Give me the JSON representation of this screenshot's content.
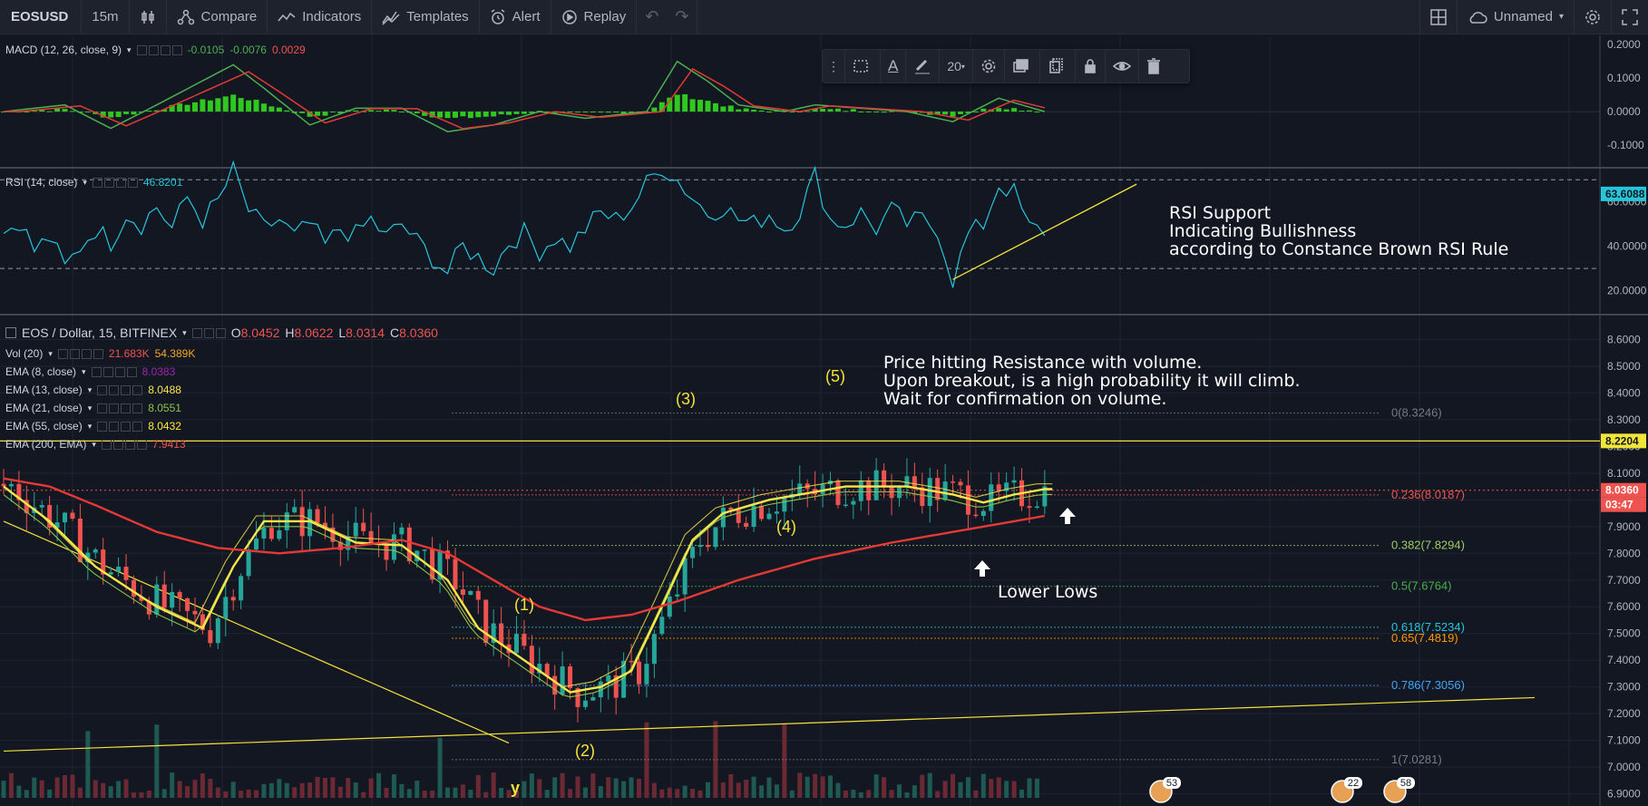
{
  "toolbar": {
    "symbol": "EOSUSD",
    "interval": "15m",
    "compare": "Compare",
    "indicators": "Indicators",
    "templates": "Templates",
    "alert": "Alert",
    "replay": "Replay",
    "layout_name": "Unnamed"
  },
  "float_toolbar": {
    "font_size": "20"
  },
  "macd": {
    "label": "MACD (12, 26, close, 9)",
    "v1": "-0.0105",
    "v2": "-0.0076",
    "v3": "0.0029",
    "ticks": [
      "0.2000",
      "0.1000",
      "0.0000",
      "-0.1000"
    ],
    "tick_values": [
      0.2,
      0.1,
      0.0,
      -0.1
    ]
  },
  "rsi": {
    "label": "RSI (14, close)",
    "value": "46.8201",
    "ticks": [
      "60.0000",
      "40.0000",
      "20.0000"
    ],
    "tick_values": [
      60,
      40,
      20
    ],
    "upper_band": 70,
    "lower_band": 30,
    "badge": "63.6088",
    "annotation": [
      "RSI Support",
      "Indicating Bullishness",
      "according to Constance Brown RSI Rule"
    ]
  },
  "price": {
    "title": "EOS / Dollar, 15, BITFINEX",
    "o": "8.0452",
    "h": "8.0622",
    "l": "8.0314",
    "c": "8.0360",
    "studies": [
      {
        "label": "Vol (20)",
        "values": [
          "21.683K",
          "54.389K"
        ],
        "colors": [
          "#ef5350",
          "#f5a623"
        ]
      },
      {
        "label": "EMA (8, close)",
        "values": [
          "8.0383"
        ],
        "colors": [
          "#9c27b0"
        ]
      },
      {
        "label": "EMA (13, close)",
        "values": [
          "8.0488"
        ],
        "colors": [
          "#f6e84c"
        ]
      },
      {
        "label": "EMA (21, close)",
        "values": [
          "8.0551"
        ],
        "colors": [
          "#8bc34a"
        ]
      },
      {
        "label": "EMA (55, close)",
        "values": [
          "8.0432"
        ],
        "colors": [
          "#ffeb3b"
        ]
      },
      {
        "label": "EMA (200, EMA)",
        "values": [
          "7.9413"
        ],
        "colors": [
          "#ef5350"
        ]
      }
    ],
    "axis_ticks": [
      "8.6000",
      "8.5000",
      "8.4000",
      "8.3000",
      "8.2000",
      "8.1000",
      "8.0000",
      "7.9000",
      "7.8000",
      "7.7000",
      "7.6000",
      "7.5000",
      "7.4000",
      "7.3000",
      "7.2000",
      "7.1000",
      "7.0000",
      "6.9000"
    ],
    "axis_values": [
      8.6,
      8.5,
      8.4,
      8.3,
      8.2,
      8.1,
      8.0,
      7.9,
      7.8,
      7.7,
      7.6,
      7.5,
      7.4,
      7.3,
      7.2,
      7.1,
      7.0,
      6.9
    ],
    "badge_resistance": "8.2204",
    "badge_last": "8.0360",
    "badge_timer": "03:47",
    "resistance": 8.2204,
    "fib": [
      {
        "label": "0(8.3246)",
        "value": 8.3246,
        "color": "#787b86"
      },
      {
        "label": "0.236(8.0187)",
        "value": 8.0187,
        "color": "#ef5350"
      },
      {
        "label": "0.382(7.8294)",
        "value": 7.8294,
        "color": "#9ccc65"
      },
      {
        "label": "0.5(7.6764)",
        "value": 7.6764,
        "color": "#4caf50"
      },
      {
        "label": "0.618(7.5234)",
        "value": 7.5234,
        "color": "#26c6da"
      },
      {
        "label": "0.65(7.4819)",
        "value": 7.4819,
        "color": "#ff9800"
      },
      {
        "label": "0.786(7.3056)",
        "value": 7.3056,
        "color": "#42a5f5"
      },
      {
        "label": "1(7.0281)",
        "value": 7.0281,
        "color": "#787b86"
      }
    ],
    "waves": [
      "(1)",
      "(2)",
      "(3)",
      "(4)",
      "(5)",
      "y"
    ],
    "annotations": {
      "resistance": [
        "Price hitting Resistance with volume.",
        "Upon breakout, is a high probability it will climb.",
        "Wait for confirmation on volume."
      ],
      "lower_lows": "Lower Lows"
    },
    "event_badges": [
      "53",
      "22",
      "58"
    ]
  },
  "colors": {
    "bg": "#131722",
    "grid": "#1e2433",
    "up": "#26a69a",
    "down": "#ef5350",
    "ema200": "#e53935",
    "ema55": "#f7e64a",
    "rsi": "#26c6da",
    "macd": "#4caf50",
    "signal": "#e53935",
    "hist": "#2ec81e",
    "annot": "#f5e23a"
  },
  "chart_data": {
    "type": "candlestick",
    "title": "EOS / Dollar, 15, BITFINEX",
    "price_range": [
      6.9,
      8.6
    ],
    "ema200_path": [
      [
        0,
        8.08
      ],
      [
        6,
        8.05
      ],
      [
        12,
        7.98
      ],
      [
        20,
        7.88
      ],
      [
        28,
        7.82
      ],
      [
        36,
        7.8
      ],
      [
        44,
        7.82
      ],
      [
        52,
        7.85
      ],
      [
        58,
        7.8
      ],
      [
        64,
        7.7
      ],
      [
        70,
        7.6
      ],
      [
        76,
        7.55
      ],
      [
        82,
        7.57
      ],
      [
        88,
        7.62
      ],
      [
        96,
        7.7
      ],
      [
        106,
        7.78
      ],
      [
        116,
        7.84
      ],
      [
        124,
        7.88
      ],
      [
        130,
        7.91
      ],
      [
        136,
        7.94
      ]
    ],
    "ema55_path": [
      [
        0,
        8.05
      ],
      [
        6,
        7.92
      ],
      [
        12,
        7.75
      ],
      [
        20,
        7.6
      ],
      [
        26,
        7.52
      ],
      [
        30,
        7.75
      ],
      [
        34,
        7.92
      ],
      [
        40,
        7.92
      ],
      [
        46,
        7.84
      ],
      [
        52,
        7.83
      ],
      [
        58,
        7.7
      ],
      [
        62,
        7.52
      ],
      [
        68,
        7.4
      ],
      [
        74,
        7.28
      ],
      [
        78,
        7.3
      ],
      [
        82,
        7.36
      ],
      [
        86,
        7.6
      ],
      [
        90,
        7.85
      ],
      [
        94,
        7.95
      ],
      [
        100,
        8.0
      ],
      [
        110,
        8.05
      ],
      [
        118,
        8.05
      ],
      [
        124,
        8.02
      ],
      [
        128,
        7.99
      ],
      [
        132,
        8.02
      ],
      [
        136,
        8.04
      ]
    ],
    "rsi_path": [
      [
        0,
        46
      ],
      [
        2,
        52
      ],
      [
        4,
        38
      ],
      [
        6,
        44
      ],
      [
        8,
        30
      ],
      [
        10,
        40
      ],
      [
        12,
        48
      ],
      [
        14,
        42
      ],
      [
        16,
        55
      ],
      [
        18,
        50
      ],
      [
        20,
        58
      ],
      [
        22,
        48
      ],
      [
        24,
        62
      ],
      [
        26,
        52
      ],
      [
        28,
        60
      ],
      [
        30,
        74
      ],
      [
        32,
        56
      ],
      [
        34,
        48
      ],
      [
        36,
        52
      ],
      [
        38,
        44
      ],
      [
        40,
        50
      ],
      [
        42,
        40
      ],
      [
        44,
        48
      ],
      [
        46,
        45
      ],
      [
        48,
        52
      ],
      [
        50,
        44
      ],
      [
        52,
        50
      ],
      [
        54,
        42
      ],
      [
        56,
        35
      ],
      [
        58,
        28
      ],
      [
        60,
        40
      ],
      [
        62,
        35
      ],
      [
        64,
        30
      ],
      [
        66,
        42
      ],
      [
        68,
        46
      ],
      [
        70,
        38
      ],
      [
        72,
        44
      ],
      [
        74,
        40
      ],
      [
        76,
        48
      ],
      [
        78,
        55
      ],
      [
        80,
        52
      ],
      [
        82,
        58
      ],
      [
        84,
        68
      ],
      [
        86,
        76
      ],
      [
        88,
        70
      ],
      [
        90,
        62
      ],
      [
        92,
        55
      ],
      [
        94,
        58
      ],
      [
        96,
        52
      ],
      [
        98,
        50
      ],
      [
        100,
        55
      ],
      [
        102,
        48
      ],
      [
        104,
        56
      ],
      [
        106,
        72
      ],
      [
        108,
        52
      ],
      [
        110,
        50
      ],
      [
        112,
        55
      ],
      [
        114,
        48
      ],
      [
        116,
        56
      ],
      [
        118,
        50
      ],
      [
        120,
        52
      ],
      [
        122,
        48
      ],
      [
        124,
        25
      ],
      [
        126,
        45
      ],
      [
        128,
        50
      ],
      [
        130,
        68
      ],
      [
        132,
        64
      ],
      [
        134,
        48
      ],
      [
        136,
        47
      ]
    ],
    "macd_path": [
      [
        0,
        0.0
      ],
      [
        8,
        0.02
      ],
      [
        14,
        -0.05
      ],
      [
        20,
        0.02
      ],
      [
        30,
        0.14
      ],
      [
        34,
        0.07
      ],
      [
        40,
        -0.04
      ],
      [
        46,
        0.01
      ],
      [
        52,
        0.01
      ],
      [
        58,
        -0.06
      ],
      [
        64,
        -0.04
      ],
      [
        70,
        0.0
      ],
      [
        76,
        -0.02
      ],
      [
        84,
        0.0
      ],
      [
        88,
        0.15
      ],
      [
        92,
        0.09
      ],
      [
        96,
        0.02
      ],
      [
        102,
        0.0
      ],
      [
        106,
        0.02
      ],
      [
        112,
        0.01
      ],
      [
        118,
        0.0
      ],
      [
        124,
        -0.03
      ],
      [
        130,
        0.04
      ],
      [
        136,
        0.0
      ]
    ],
    "support_line": {
      "from": [
        0,
        7.06
      ],
      "to": [
        200,
        7.26
      ]
    },
    "downtrend_line": {
      "from": [
        0,
        7.92
      ],
      "to": [
        66,
        7.09
      ]
    },
    "rsi_support": {
      "from": [
        124,
        25
      ],
      "to": [
        148,
        68
      ]
    }
  }
}
